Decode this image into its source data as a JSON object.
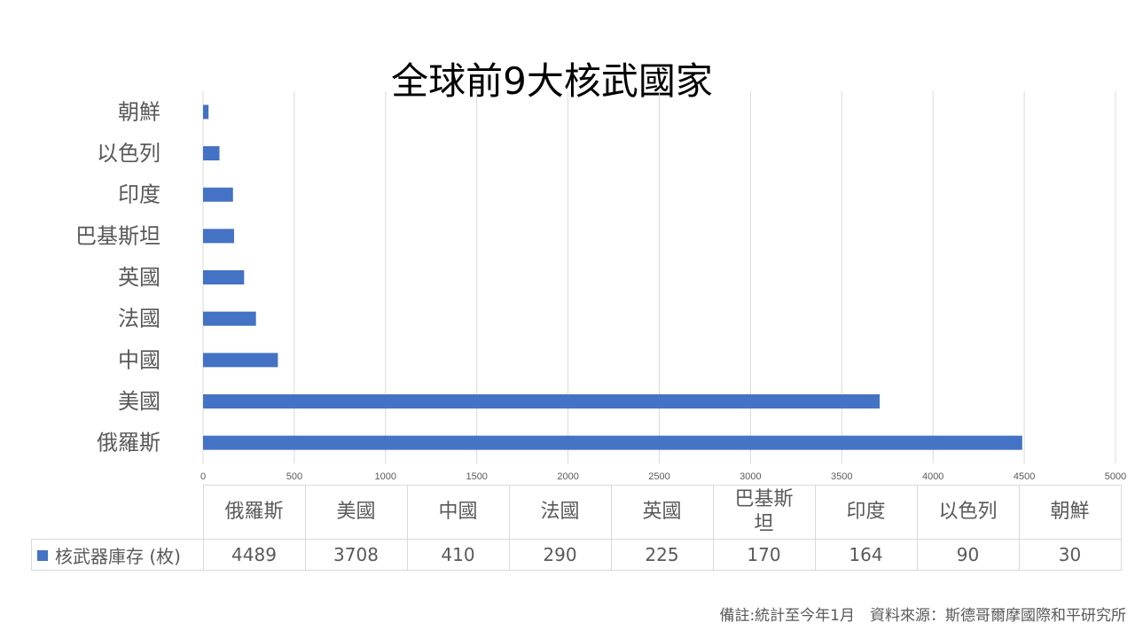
{
  "chart_data": {
    "type": "bar",
    "orientation": "horizontal",
    "title": "全球前9大核武國家",
    "categories": [
      "俄羅斯",
      "美國",
      "中國",
      "法國",
      "英國",
      "巴基斯坦",
      "印度",
      "以色列",
      "朝鮮"
    ],
    "series": [
      {
        "name": "核武器庫存 (枚)",
        "values": [
          4489,
          3708,
          410,
          290,
          225,
          170,
          164,
          90,
          30
        ],
        "color": "#4472c4"
      }
    ],
    "xlim": [
      0,
      5000
    ],
    "x_ticks": [
      0,
      500,
      1000,
      1500,
      2000,
      2500,
      3000,
      3500,
      4000,
      4500,
      5000
    ],
    "grid": true,
    "data_table": true
  },
  "table_headers": [
    "俄羅斯",
    "美國",
    "中國",
    "法國",
    "英國",
    "巴基斯\n坦",
    "印度",
    "以色列",
    "朝鮮"
  ],
  "footnote": "備註:統計至今年1月　資料來源：斯德哥爾摩國際和平研究所"
}
